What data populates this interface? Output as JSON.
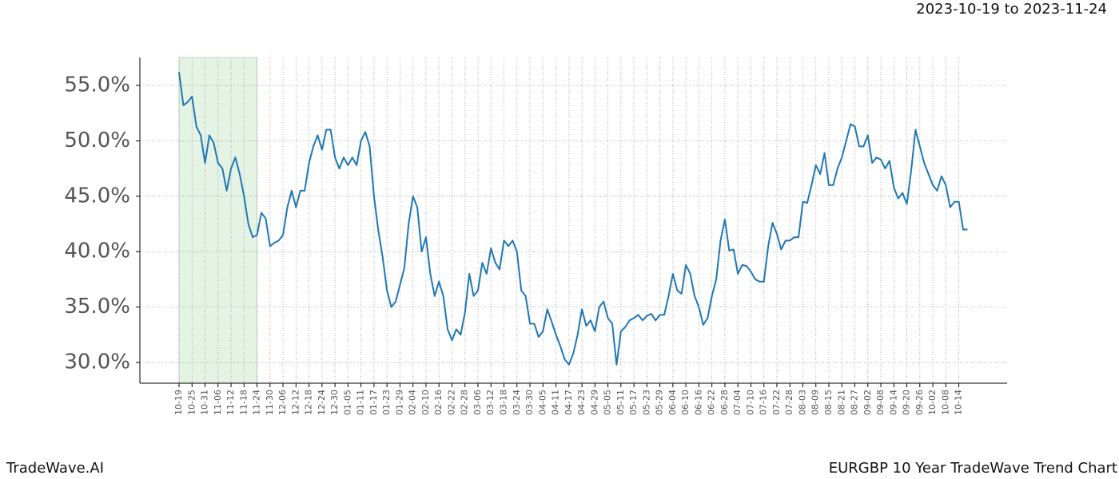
{
  "chart_data": {
    "type": "line",
    "title": "2023-10-19 to 2023-11-24",
    "footer_left": "TradeWave.AI",
    "footer_right": "EURGBP 10 Year TradeWave Trend Chart",
    "categories": [
      "10-19",
      null,
      null,
      "10-25",
      null,
      null,
      "10-31",
      null,
      null,
      "11-06",
      null,
      null,
      "11-12",
      null,
      null,
      "11-18",
      null,
      null,
      "11-24",
      null,
      null,
      "11-30",
      null,
      null,
      "12-06",
      null,
      null,
      "12-12",
      null,
      null,
      "12-18",
      null,
      null,
      "12-24",
      null,
      null,
      "12-30",
      null,
      null,
      "01-05",
      null,
      null,
      "01-11",
      null,
      null,
      "01-17",
      null,
      null,
      "01-23",
      null,
      null,
      "01-29",
      null,
      null,
      "02-04",
      null,
      null,
      "02-10",
      null,
      null,
      "02-16",
      null,
      null,
      "02-22",
      null,
      null,
      "02-28",
      null,
      null,
      "03-06",
      null,
      null,
      "03-12",
      null,
      null,
      "03-18",
      null,
      null,
      "03-24",
      null,
      null,
      "03-30",
      null,
      null,
      "04-05",
      null,
      null,
      "04-11",
      null,
      null,
      "04-17",
      null,
      null,
      "04-23",
      null,
      null,
      "04-29",
      null,
      null,
      "05-05",
      null,
      null,
      "05-11",
      null,
      null,
      "05-17",
      null,
      null,
      "05-23",
      null,
      null,
      "05-29",
      null,
      null,
      "06-04",
      null,
      null,
      "06-10",
      null,
      null,
      "06-16",
      null,
      null,
      "06-22",
      null,
      null,
      "06-28",
      null,
      null,
      "07-04",
      null,
      null,
      "07-10",
      null,
      null,
      "07-16",
      null,
      null,
      "07-22",
      null,
      null,
      "07-28",
      null,
      null,
      "08-03",
      null,
      null,
      "08-09",
      null,
      null,
      "08-15",
      null,
      null,
      "08-21",
      null,
      null,
      "08-27",
      null,
      null,
      "09-02",
      null,
      null,
      "09-08",
      null,
      null,
      "09-14",
      null,
      null,
      "09-20",
      null,
      null,
      "09-26",
      null,
      null,
      "10-02",
      null,
      null,
      "10-08",
      null,
      null,
      "10-14",
      null,
      null
    ],
    "series": [
      {
        "color": "#1f77b4",
        "values": [
          56.2,
          53.2,
          53.5,
          54,
          51.3,
          50.5,
          48,
          50.5,
          49.8,
          48,
          47.5,
          45.5,
          47.5,
          48.5,
          47,
          45,
          42.5,
          41.3,
          41.5,
          43.5,
          43,
          40.5,
          40.8,
          41,
          41.5,
          44,
          45.5,
          44,
          45.5,
          45.5,
          48,
          49.5,
          50.5,
          49.2,
          51,
          51,
          48.5,
          47.5,
          48.5,
          47.8,
          48.5,
          47.8,
          50,
          50.8,
          49.5,
          45,
          41.9,
          39.5,
          36.5,
          35,
          35.5,
          37,
          38.5,
          42.5,
          45,
          44,
          40,
          41.3,
          38,
          36,
          37.3,
          36,
          33,
          32,
          33,
          32.5,
          34.5,
          38,
          36,
          36.5,
          39,
          38,
          40.3,
          39,
          38.4,
          41,
          40.5,
          41,
          40,
          36.5,
          36,
          33.5,
          33.5,
          32.3,
          32.8,
          34.8,
          33.7,
          32.5,
          31.5,
          30.3,
          29.8,
          30.8,
          32.5,
          34.8,
          33.3,
          33.8,
          32.8,
          35,
          35.5,
          34,
          33.5,
          29.8,
          32.8,
          33.2,
          33.8,
          34,
          34.3,
          33.8,
          34.2,
          34.4,
          33.8,
          34.3,
          34.3,
          36,
          38,
          36.5,
          36.2,
          38.8,
          38,
          36,
          35,
          33.4,
          34,
          36,
          37.5,
          41,
          42.9,
          40.1,
          40.2,
          38,
          38.8,
          38.7,
          38.2,
          37.5,
          37.3,
          37.3,
          40.5,
          42.6,
          41.6,
          40.2,
          41,
          41,
          41.3,
          41.3,
          44.5,
          44.4,
          46,
          47.8,
          47,
          48.9,
          46,
          46,
          47.5,
          48.5,
          50,
          51.5,
          51.3,
          49.5,
          49.5,
          50.5,
          48,
          48.5,
          48.3,
          47.5,
          48.2,
          45.8,
          44.8,
          45.3,
          44.3,
          47.3,
          51,
          49.5,
          48,
          47,
          46,
          45.5,
          46.8,
          46,
          44,
          44.5,
          44.5,
          42,
          42
        ]
      }
    ],
    "ylim": [
      28.13,
      57.52
    ],
    "yticks": [
      {
        "value": 30,
        "label": "30.0%"
      },
      {
        "value": 35,
        "label": "35.0%"
      },
      {
        "value": 40,
        "label": "40.0%"
      },
      {
        "value": 45,
        "label": "45.0%"
      },
      {
        "value": 50,
        "label": "50.0%"
      },
      {
        "value": 55,
        "label": "55.0%"
      }
    ],
    "grid": true,
    "shade": {
      "from": "10-19",
      "to": "11-24",
      "color": "#2ca02c"
    }
  }
}
